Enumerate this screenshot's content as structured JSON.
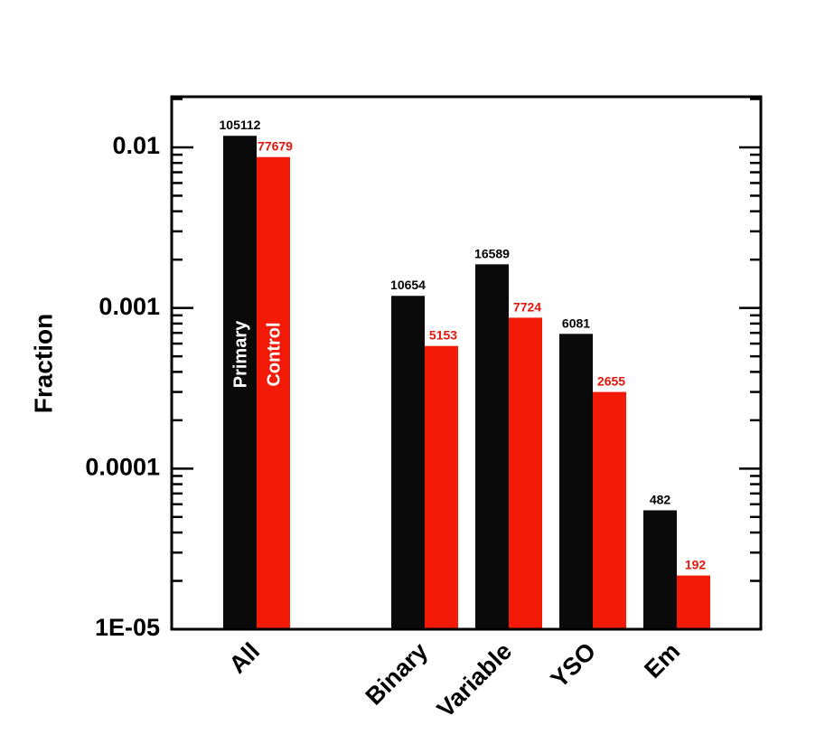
{
  "chart_data": {
    "type": "bar",
    "log_scale": true,
    "ylabel": "Fraction",
    "xlabel": "",
    "ylim": [
      1e-05,
      0.02
    ],
    "yticks": [
      {
        "value": 0.01,
        "label": "0.01"
      },
      {
        "value": 0.001,
        "label": "0.001"
      },
      {
        "value": 0.0001,
        "label": "0.0001"
      },
      {
        "value": 1e-05,
        "label": "1E-05"
      }
    ],
    "categories": [
      "All",
      "Binary",
      "Variable",
      "YSO",
      "Em"
    ],
    "series": [
      {
        "name": "Primary",
        "color": "#0a0a0a",
        "values": [
          0.0118,
          0.00119,
          0.00187,
          0.00069,
          5.5e-05
        ],
        "labels": [
          "105112",
          "10654",
          "16589",
          "6081",
          "482"
        ],
        "label_color": "#000000"
      },
      {
        "name": "Control",
        "color": "#f41a08",
        "values": [
          0.0087,
          0.00058,
          0.00087,
          0.0003,
          2.16e-05
        ],
        "labels": [
          "77679",
          "5153",
          "7724",
          "2655",
          "192"
        ],
        "label_color": "#e8160a"
      }
    ],
    "grid": false,
    "legend": "inside-first-bars"
  }
}
